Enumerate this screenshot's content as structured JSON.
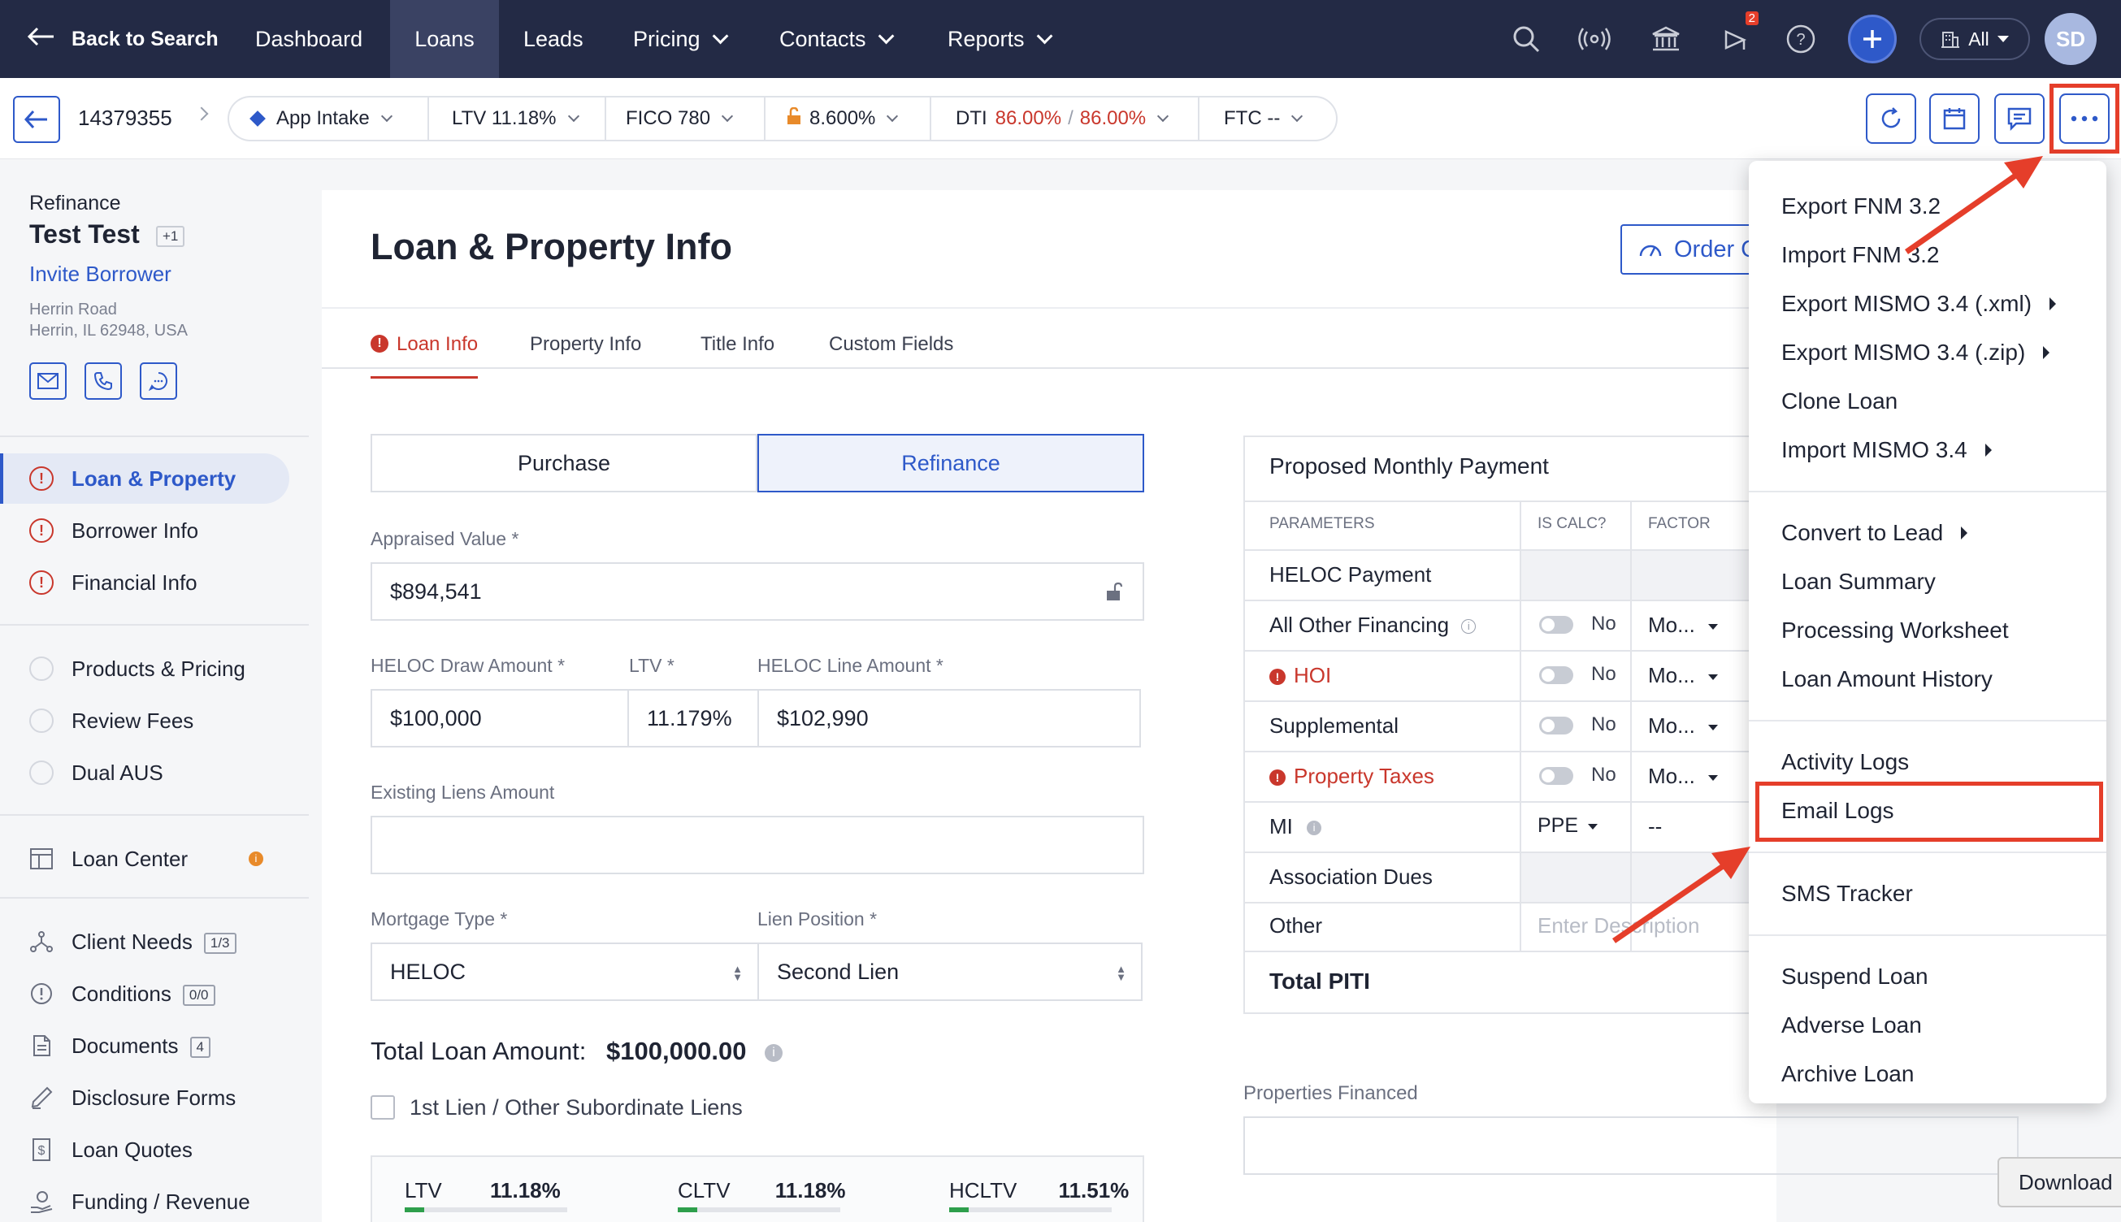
{
  "topnav": {
    "back_label": "Back to Search",
    "items": [
      "Dashboard",
      "Loans",
      "Leads",
      "Pricing",
      "Contacts",
      "Reports"
    ],
    "notification_count": "2",
    "company_filter": "All",
    "avatar": "SD",
    "accent": "#2e59c9",
    "bg": "#232a45"
  },
  "subbar": {
    "loan_number": "14379355",
    "stage": "App Intake",
    "ltv": "LTV 11.18%",
    "fico": "FICO 780",
    "rate": "8.600%",
    "dti_label": "DTI",
    "dti_front": "86.00%",
    "dti_sep": "/",
    "dti_back": "86.00%",
    "ftc": "FTC --"
  },
  "borrower": {
    "loan_purpose": "Refinance",
    "name": "Test Test",
    "extra": "+1",
    "invite": "Invite Borrower",
    "address1": "Herrin Road",
    "address2": "Herrin, IL 62948, USA"
  },
  "sidebar": {
    "items": [
      {
        "label": "Loan & Property",
        "icon": "error-icon"
      },
      {
        "label": "Borrower Info",
        "icon": "error-icon"
      },
      {
        "label": "Financial Info",
        "icon": "error-icon"
      },
      {
        "label": "Products & Pricing",
        "icon": "circle-icon"
      },
      {
        "label": "Review Fees",
        "icon": "circle-icon"
      },
      {
        "label": "Dual AUS",
        "icon": "circle-icon"
      },
      {
        "label": "Loan Center",
        "icon": "layout-icon"
      },
      {
        "label": "Client Needs",
        "icon": "network-icon",
        "count": "1/3"
      },
      {
        "label": "Conditions",
        "icon": "alert-icon",
        "count": "0/0"
      },
      {
        "label": "Documents",
        "icon": "document-icon",
        "count": "4"
      },
      {
        "label": "Disclosure Forms",
        "icon": "pen-icon"
      },
      {
        "label": "Loan Quotes",
        "icon": "dollar-doc-icon"
      },
      {
        "label": "Funding / Revenue",
        "icon": "hand-coin-icon"
      }
    ]
  },
  "main": {
    "title": "Loan & Property Info",
    "order_button": "Order C",
    "tabs": [
      "Loan Info",
      "Property Info",
      "Title Info",
      "Custom Fields"
    ],
    "purpose_options": [
      "Purchase",
      "Refinance"
    ],
    "appraised_label": "Appraised Value *",
    "appraised_value": "$894,541",
    "heloc_draw_label": "HELOC Draw Amount *",
    "heloc_draw_value": "$100,000",
    "ltv_label": "LTV *",
    "ltv_value": "11.179%",
    "heloc_line_label": "HELOC Line Amount *",
    "heloc_line_value": "$102,990",
    "existing_liens_label": "Existing Liens Amount",
    "existing_liens_value": "",
    "mortgage_type_label": "Mortgage Type *",
    "mortgage_type_value": "HELOC",
    "lien_position_label": "Lien Position *",
    "lien_position_value": "Second Lien",
    "total_loan_label": "Total Loan Amount:",
    "total_loan_value": "$100,000.00",
    "first_lien_label": "1st Lien / Other Subordinate Liens",
    "ratios": [
      {
        "label": "LTV",
        "value": "11.18%"
      },
      {
        "label": "CLTV",
        "value": "11.18%"
      },
      {
        "label": "HCLTV",
        "value": "11.51%"
      }
    ],
    "properties_financed_label": "Properties Financed"
  },
  "payment": {
    "title": "Proposed Monthly Payment",
    "headers": [
      "PARAMETERS",
      "IS CALC?",
      "FACTOR"
    ],
    "rows": [
      {
        "label": "HELOC Payment",
        "error": false,
        "calc": "",
        "factor": ""
      },
      {
        "label": "All Other Financing",
        "error": false,
        "calc": "No",
        "factor": "Mo..."
      },
      {
        "label": "HOI",
        "error": true,
        "calc": "No",
        "factor": "Mo..."
      },
      {
        "label": "Supplemental",
        "error": false,
        "calc": "No",
        "factor": "Mo..."
      },
      {
        "label": "Property Taxes",
        "error": true,
        "calc": "No",
        "factor": "Mo..."
      },
      {
        "label": "MI",
        "error": false,
        "calc": "PPE",
        "factor": "--"
      },
      {
        "label": "Association Dues",
        "error": false,
        "calc": "",
        "factor": ""
      },
      {
        "label": "Other",
        "error": false,
        "calc": "",
        "factor": ""
      }
    ],
    "other_placeholder": "Enter Description",
    "total_label": "Total PITI"
  },
  "menu": {
    "items": [
      "Export FNM 3.2",
      "Import FNM 3.2",
      "Export MISMO 3.4 (.xml)",
      "Export MISMO 3.4 (.zip)",
      "Clone Loan",
      "Import MISMO 3.4",
      "Convert to Lead",
      "Loan Summary",
      "Processing Worksheet",
      "Loan Amount History",
      "Activity Logs",
      "Email Logs",
      "SMS Tracker",
      "Suspend Loan",
      "Adverse Loan",
      "Archive Loan"
    ],
    "highlight_color": "#e53e2a"
  },
  "tooltip": "Download"
}
